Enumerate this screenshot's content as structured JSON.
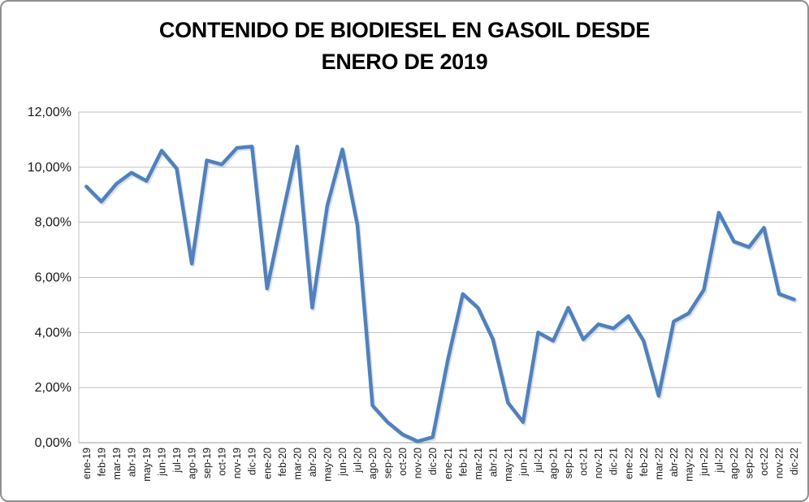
{
  "window": {
    "background": "#ffffff",
    "border_color": "#8f8f8f"
  },
  "colors": {
    "series_line": "#4F81BD",
    "gridline": "#bfbfbf",
    "axis_line": "#9e9e9e",
    "label_text": "#1a1a1a",
    "title_text": "#000000"
  },
  "chart_data": {
    "type": "line",
    "title": "CONTENIDO DE BIODIESEL EN GASOIL DESDE ENERO DE 2019",
    "title_line1": "CONTENIDO DE BIODIESEL EN GASOIL DESDE",
    "title_line2": "ENERO DE 2019",
    "xlabel": "",
    "ylabel": "",
    "unit": "%",
    "ylim": [
      0,
      12
    ],
    "y_tick_step": 2,
    "y_tick_labels": [
      "0,00%",
      "2,00%",
      "4,00%",
      "6,00%",
      "8,00%",
      "10,00%",
      "12,00%"
    ],
    "grid": true,
    "legend_position": "none",
    "x_labels_rotated_90": true,
    "categories": [
      "ene-19",
      "feb-19",
      "mar-19",
      "abr-19",
      "may-19",
      "jun-19",
      "jul-19",
      "ago-19",
      "sep-19",
      "oct-19",
      "nov-19",
      "dic-19",
      "ene-20",
      "feb-20",
      "mar-20",
      "abr-20",
      "may-20",
      "jun-20",
      "jul-20",
      "ago-20",
      "sep-20",
      "oct-20",
      "nov-20",
      "dic-20",
      "ene-21",
      "feb-21",
      "mar-21",
      "abr-21",
      "may-21",
      "jun-21",
      "jul-21",
      "ago-21",
      "sep-21",
      "oct-21",
      "nov-21",
      "dic-21",
      "ene-22",
      "feb-22",
      "mar-22",
      "abr-22",
      "may-22",
      "jun-22",
      "jul-22",
      "ago-22",
      "sep-22",
      "oct-22",
      "nov-22",
      "dic-22"
    ],
    "values": [
      9.3,
      8.75,
      9.4,
      9.8,
      9.5,
      10.6,
      9.95,
      6.5,
      10.25,
      10.1,
      10.7,
      10.75,
      5.6,
      8.2,
      10.75,
      4.9,
      8.6,
      10.65,
      7.9,
      1.35,
      0.75,
      0.3,
      0.05,
      0.2,
      3.0,
      5.4,
      4.9,
      3.75,
      1.45,
      0.75,
      4.0,
      3.7,
      4.9,
      3.75,
      4.3,
      4.15,
      4.6,
      3.7,
      1.7,
      4.4,
      4.7,
      5.55,
      8.35,
      7.3,
      7.1,
      7.8,
      5.4,
      5.2
    ]
  }
}
